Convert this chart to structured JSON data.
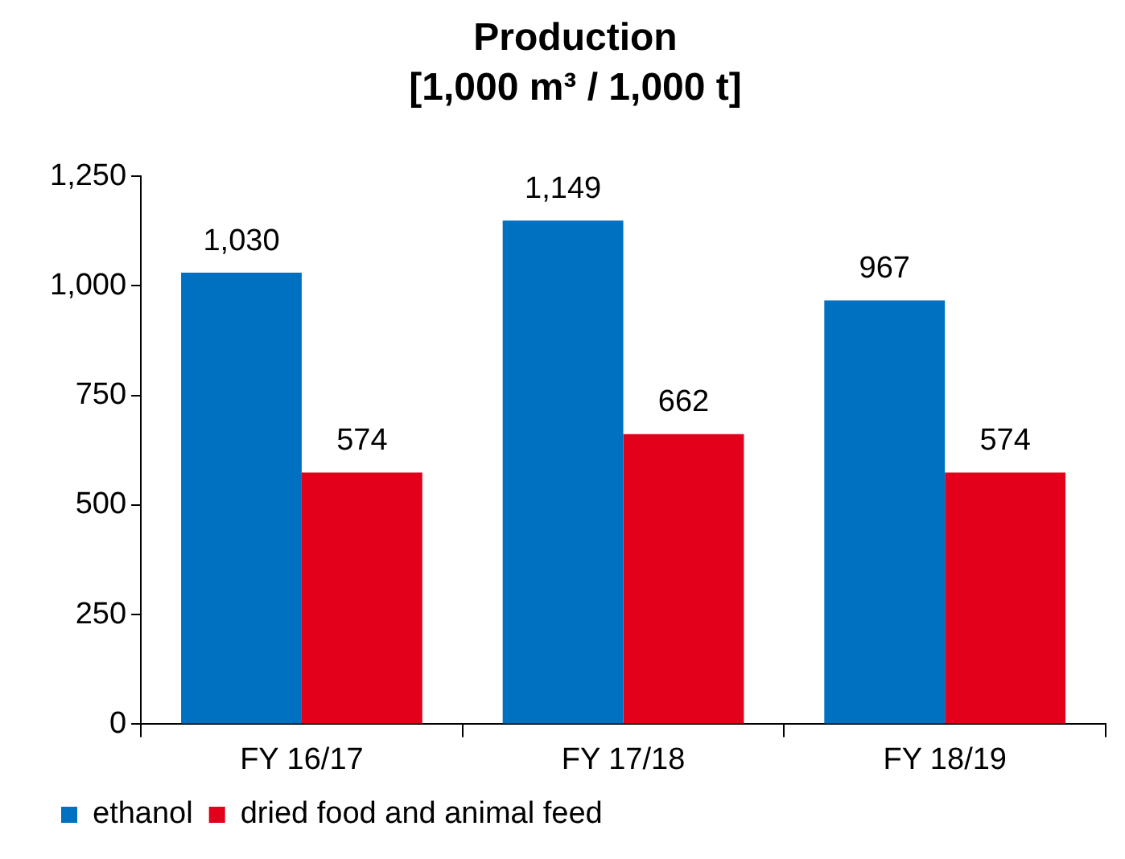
{
  "chart_data": {
    "type": "bar",
    "title": "Production",
    "subtitle": "[1,000 m³ / 1,000 t]",
    "categories": [
      "FY 16/17",
      "FY 17/18",
      "FY 18/19"
    ],
    "series": [
      {
        "name": "ethanol",
        "color": "#0070c0",
        "values": [
          1030,
          1149,
          967
        ],
        "value_labels": [
          "1,030",
          "1,149",
          "967"
        ]
      },
      {
        "name": "dried food and animal feed",
        "color": "#e2001a",
        "values": [
          574,
          662,
          574
        ],
        "value_labels": [
          "574",
          "662",
          "574"
        ]
      }
    ],
    "ylim": [
      0,
      1250
    ],
    "yticks": [
      0,
      250,
      500,
      750,
      {
        "value": 1000,
        "label": "1,000"
      },
      {
        "value": 1250,
        "label": "1,250"
      }
    ],
    "grid": false,
    "legend": "bottom"
  }
}
